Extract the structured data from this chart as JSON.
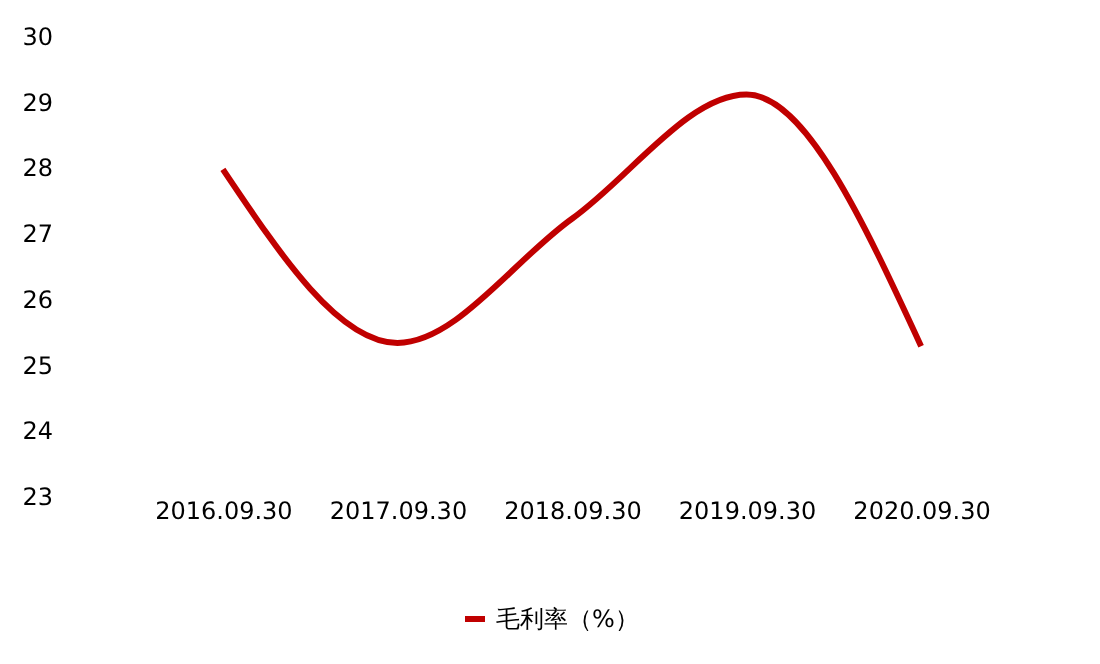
{
  "chart_data": {
    "type": "line",
    "categories": [
      "2016.09.30",
      "2017.09.30",
      "2018.09.30",
      "2019.09.30",
      "2020.09.30"
    ],
    "series": [
      {
        "name": "毛利率（%）",
        "color": "#c00000",
        "values": [
          27.97,
          25.33,
          27.22,
          29.11,
          25.28
        ]
      }
    ],
    "ylim": [
      23,
      30
    ],
    "yticks": [
      23,
      24,
      25,
      26,
      27,
      28,
      29,
      30
    ],
    "grid": false,
    "legend": "bottom",
    "marker": "none",
    "line_style": "solid"
  }
}
